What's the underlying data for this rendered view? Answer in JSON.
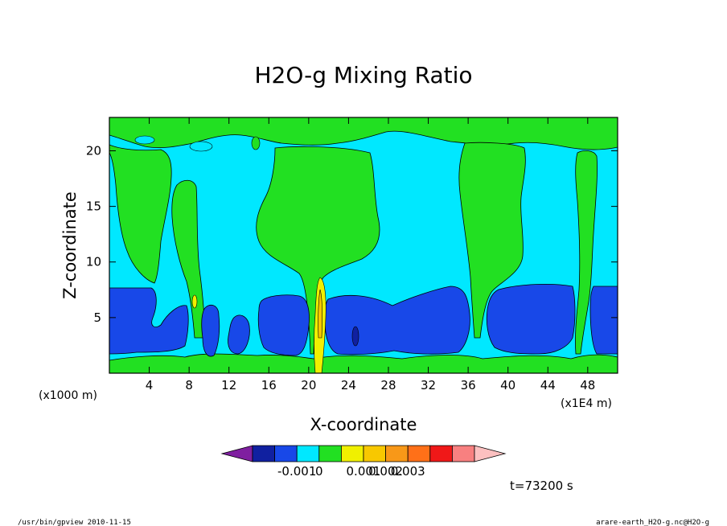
{
  "chart_data": {
    "type": "contour",
    "title": "H2O-g Mixing Ratio",
    "xlabel": "X-coordinate",
    "ylabel": "Z-coordinate",
    "x_unit": "(x1000 m)",
    "x_scale_note": "(x1E4 m)",
    "xlim": [
      0,
      51
    ],
    "ylim": [
      0,
      23
    ],
    "xticks": [
      4,
      8,
      12,
      16,
      20,
      24,
      28,
      32,
      36,
      40,
      44,
      48
    ],
    "yticks": [
      5,
      10,
      15,
      20
    ],
    "colorbar": {
      "colors": [
        "#7f1fa0",
        "#1020a0",
        "#1848e8",
        "#00e8ff",
        "#22e022",
        "#f0f000",
        "#f8c800",
        "#f89818",
        "#ff7018",
        "#f01818",
        "#f88080",
        "#fcc0c0"
      ],
      "labels": [
        "-0.001",
        "0",
        "0.001",
        "0.002",
        "0.003"
      ]
    },
    "time_label": "t=73200 s",
    "footer_left": "/usr/bin/gpview   2010-11-15",
    "footer_right": "arare-earth_H2O-g.nc@H2O-g"
  }
}
